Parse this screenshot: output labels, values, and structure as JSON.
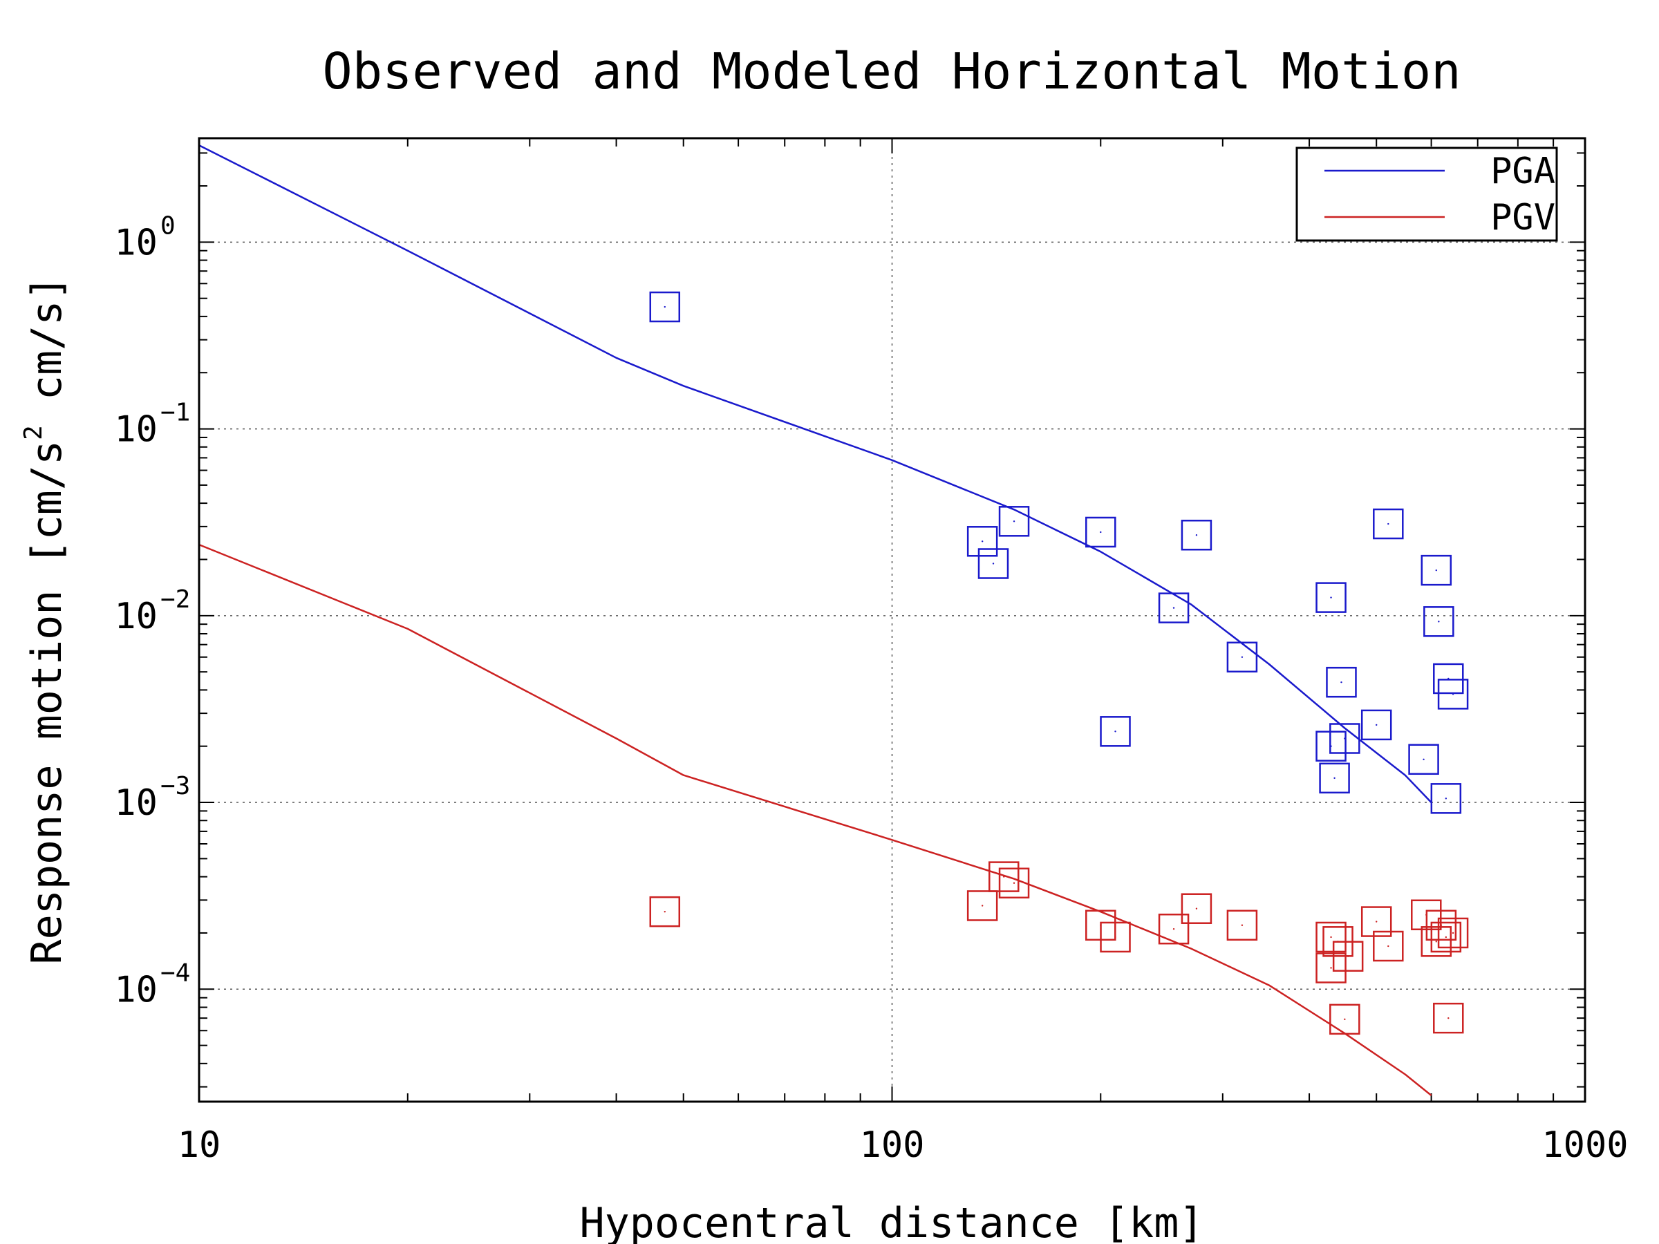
{
  "chart_data": {
    "type": "scatter",
    "title": "Observed and Modeled Horizontal Motion",
    "xlabel": "Hypocentral distance [km]",
    "ylabel_parts": [
      "Response motion  [cm/s",
      "2",
      "  cm/s]"
    ],
    "x_scale": "log",
    "y_scale": "log",
    "xlim": [
      10,
      1000
    ],
    "ylim": [
      2.5e-05,
      3.6
    ],
    "x_ticks": [
      {
        "value": 10,
        "label": "10"
      },
      {
        "value": 100,
        "label": "100"
      },
      {
        "value": 1000,
        "label": "1000"
      }
    ],
    "y_ticks": [
      {
        "value": 1,
        "base": "10",
        "exp": "0"
      },
      {
        "value": 0.1,
        "base": "10",
        "exp": "−1"
      },
      {
        "value": 0.01,
        "base": "10",
        "exp": "−2"
      },
      {
        "value": 0.001,
        "base": "10",
        "exp": "−3"
      },
      {
        "value": 0.0001,
        "base": "10",
        "exp": "−4"
      }
    ],
    "grid": true,
    "legend_position": "top-right",
    "series": [
      {
        "name": "PGA",
        "color": "#1a1acc",
        "model_line": [
          [
            10,
            3.3
          ],
          [
            20,
            0.9
          ],
          [
            40,
            0.24
          ],
          [
            50,
            0.17
          ],
          [
            100,
            0.068
          ],
          [
            150,
            0.037
          ],
          [
            200,
            0.022
          ],
          [
            270,
            0.0115
          ],
          [
            350,
            0.0055
          ],
          [
            450,
            0.0025
          ],
          [
            550,
            0.0014
          ],
          [
            600,
            0.001
          ]
        ],
        "observed": [
          [
            47,
            0.45
          ],
          [
            135,
            0.025
          ],
          [
            140,
            0.019
          ],
          [
            150,
            0.032
          ],
          [
            200,
            0.028
          ],
          [
            210,
            0.0024
          ],
          [
            255,
            0.011
          ],
          [
            275,
            0.027
          ],
          [
            320,
            0.006
          ],
          [
            430,
            0.0125
          ],
          [
            430,
            0.002
          ],
          [
            435,
            0.00135
          ],
          [
            445,
            0.0044
          ],
          [
            450,
            0.0022
          ],
          [
            500,
            0.0026
          ],
          [
            520,
            0.031
          ],
          [
            585,
            0.0017
          ],
          [
            610,
            0.0175
          ],
          [
            615,
            0.0093
          ],
          [
            635,
            0.0046
          ],
          [
            645,
            0.0038
          ],
          [
            630,
            0.00105
          ]
        ]
      },
      {
        "name": "PGV",
        "color": "#cc2222",
        "model_line": [
          [
            10,
            0.024
          ],
          [
            20,
            0.0085
          ],
          [
            40,
            0.0022
          ],
          [
            50,
            0.0014
          ],
          [
            100,
            0.00063
          ],
          [
            150,
            0.00039
          ],
          [
            200,
            0.00026
          ],
          [
            270,
            0.000165
          ],
          [
            350,
            0.000105
          ],
          [
            450,
            5.8e-05
          ],
          [
            550,
            3.5e-05
          ],
          [
            600,
            2.7e-05
          ]
        ],
        "observed": [
          [
            47,
            0.00026
          ],
          [
            135,
            0.00028
          ],
          [
            145,
            0.0004
          ],
          [
            150,
            0.00037
          ],
          [
            200,
            0.00022
          ],
          [
            210,
            0.00019
          ],
          [
            255,
            0.00021
          ],
          [
            275,
            0.00027
          ],
          [
            320,
            0.00022
          ],
          [
            430,
            0.00019
          ],
          [
            430,
            0.00013
          ],
          [
            440,
            0.00018
          ],
          [
            450,
            6.9e-05
          ],
          [
            455,
            0.00015
          ],
          [
            500,
            0.00023
          ],
          [
            520,
            0.00017
          ],
          [
            590,
            0.00025
          ],
          [
            610,
            0.00018
          ],
          [
            620,
            0.00022
          ],
          [
            630,
            0.00019
          ],
          [
            645,
            0.0002
          ],
          [
            635,
            7e-05
          ]
        ]
      }
    ]
  }
}
